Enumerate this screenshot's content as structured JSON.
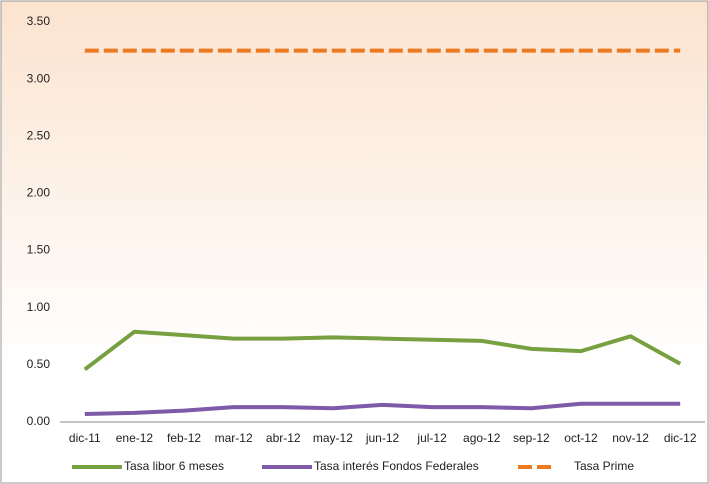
{
  "chart_data": {
    "type": "line",
    "categories": [
      "dic-11",
      "ene-12",
      "feb-12",
      "mar-12",
      "abr-12",
      "may-12",
      "jun-12",
      "jul-12",
      "ago-12",
      "sep-12",
      "oct-12",
      "nov-12",
      "dic-12"
    ],
    "series": [
      {
        "name": "Tasa libor 6 meses",
        "color": "#77a040",
        "style": "solid",
        "values": [
          0.46,
          0.79,
          0.76,
          0.73,
          0.73,
          0.74,
          0.73,
          0.72,
          0.71,
          0.64,
          0.62,
          0.75,
          0.51
        ]
      },
      {
        "name": "Tasa interés Fondos Federales",
        "color": "#7f5aa8",
        "style": "solid",
        "values": [
          0.07,
          0.08,
          0.1,
          0.13,
          0.13,
          0.12,
          0.15,
          0.13,
          0.13,
          0.12,
          0.16,
          0.16,
          0.16
        ]
      },
      {
        "name": "Tasa Prime",
        "color": "#ee7a20",
        "style": "dashed",
        "values": [
          3.25,
          3.25,
          3.25,
          3.25,
          3.25,
          3.25,
          3.25,
          3.25,
          3.25,
          3.25,
          3.25,
          3.25,
          3.25
        ]
      }
    ],
    "ylim": [
      0,
      3.5
    ],
    "yticks": [
      {
        "value": 0,
        "label": "0.00"
      },
      {
        "value": 0.5,
        "label": "0.50"
      },
      {
        "value": 1,
        "label": "1.00"
      },
      {
        "value": 1.5,
        "label": "1.50"
      },
      {
        "value": 2,
        "label": "2.00"
      },
      {
        "value": 2.5,
        "label": "2.50"
      },
      {
        "value": 3,
        "label": "3.00"
      },
      {
        "value": 3.5,
        "label": "3.50"
      }
    ],
    "grid": false,
    "legend": "bottom"
  }
}
